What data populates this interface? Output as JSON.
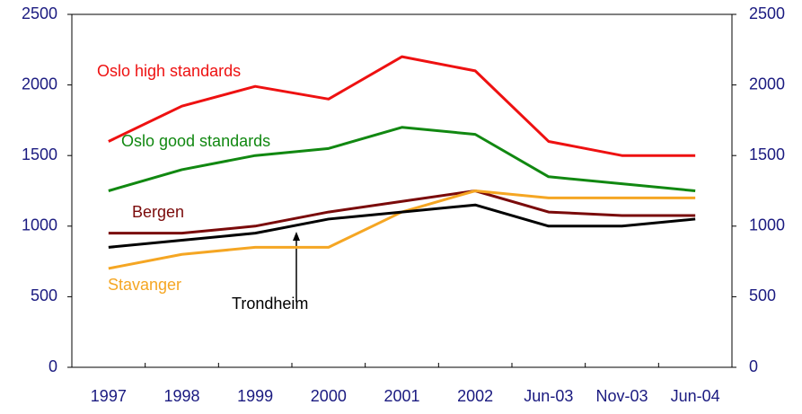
{
  "chart_data": {
    "type": "line",
    "categories": [
      "1997",
      "1998",
      "1999",
      "2000",
      "2001",
      "2002",
      "Jun-03",
      "Nov-03",
      "Jun-04"
    ],
    "series": [
      {
        "name": "Oslo high standards",
        "color": "#ee1111",
        "values": [
          1600,
          1850,
          1990,
          1900,
          2200,
          2100,
          1600,
          1500,
          1500
        ]
      },
      {
        "name": "Oslo good standards",
        "color": "#118811",
        "values": [
          1250,
          1400,
          1500,
          1550,
          1700,
          1650,
          1350,
          1300,
          1250
        ]
      },
      {
        "name": "Bergen",
        "color": "#7a0a0a",
        "values": [
          950,
          950,
          1000,
          1100,
          1175,
          1250,
          1100,
          1075,
          1075
        ]
      },
      {
        "name": "Stavanger",
        "color": "#f5a623",
        "values": [
          700,
          800,
          850,
          850,
          1100,
          1250,
          1200,
          1200,
          1200
        ]
      },
      {
        "name": "Trondheim",
        "color": "#000000",
        "values": [
          850,
          900,
          950,
          1050,
          1100,
          1150,
          1000,
          1000,
          1050
        ]
      }
    ],
    "ylim": [
      0,
      2500
    ],
    "yticks": [
      0,
      500,
      1000,
      1500,
      2000,
      2500
    ],
    "y2lim": [
      0,
      2500
    ],
    "y2ticks": [
      0,
      500,
      1000,
      1500,
      2000,
      2500
    ],
    "grid": false
  }
}
